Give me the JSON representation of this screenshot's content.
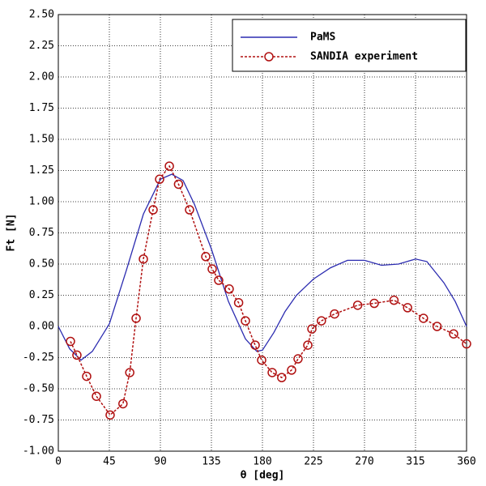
{
  "chart_data": {
    "type": "line",
    "xlabel": "θ [deg]",
    "ylabel": "Ft [N]",
    "xlim": [
      0,
      360
    ],
    "xticks": [
      0,
      45,
      90,
      135,
      180,
      225,
      270,
      315,
      360
    ],
    "ylim": [
      -1,
      2.5
    ],
    "yticks": [
      {
        "value": -1,
        "label": "-1.00"
      },
      {
        "value": -0.75,
        "label": "-0.75"
      },
      {
        "value": -0.5,
        "label": "-0.50"
      },
      {
        "value": -0.25,
        "label": "-0.25"
      },
      {
        "value": 0,
        "label": "0.00"
      },
      {
        "value": 0.25,
        "label": "0.25"
      },
      {
        "value": 0.5,
        "label": "0.50"
      },
      {
        "value": 0.75,
        "label": "0.75"
      },
      {
        "value": 1,
        "label": "1.00"
      },
      {
        "value": 1.25,
        "label": "1.25"
      },
      {
        "value": 1.5,
        "label": "1.50"
      },
      {
        "value": 1.75,
        "label": "1.75"
      },
      {
        "value": 2,
        "label": "2.00"
      },
      {
        "value": 2.25,
        "label": "2.25"
      },
      {
        "value": 2.5,
        "label": "2.50"
      }
    ],
    "grid": true,
    "legend": "upper right",
    "series": [
      {
        "name": "PaMS",
        "color": "#2b2bb0",
        "style": "solid",
        "x": [
          0,
          10,
          20,
          30,
          45,
          60,
          75,
          90,
          100,
          110,
          120,
          135,
          150,
          165,
          175,
          180,
          190,
          200,
          210,
          225,
          240,
          255,
          270,
          285,
          300,
          315,
          325,
          340,
          350,
          360
        ],
        "values": [
          0.0,
          -0.18,
          -0.27,
          -0.2,
          0.02,
          0.45,
          0.9,
          1.18,
          1.22,
          1.17,
          0.98,
          0.62,
          0.2,
          -0.1,
          -0.2,
          -0.19,
          -0.05,
          0.12,
          0.25,
          0.38,
          0.47,
          0.53,
          0.53,
          0.49,
          0.5,
          0.54,
          0.52,
          0.35,
          0.2,
          0.0
        ]
      },
      {
        "name": "SANDIA experiment",
        "color": "#b01010",
        "style": "dashed-circles",
        "x": [
          10.7,
          16.4,
          25,
          33.6,
          45.7,
          57,
          63,
          68.6,
          75,
          83.6,
          89.3,
          97.9,
          106,
          115.7,
          130,
          135.7,
          141.4,
          150.7,
          159,
          165,
          173.6,
          179.3,
          188.6,
          197,
          205.7,
          211.4,
          220,
          223.6,
          232,
          243.6,
          264,
          278.6,
          296,
          308,
          322,
          334,
          348.6,
          360
        ],
        "values": [
          -0.12,
          -0.23,
          -0.4,
          -0.56,
          -0.71,
          -0.62,
          -0.37,
          0.065,
          0.54,
          0.935,
          1.18,
          1.285,
          1.14,
          0.935,
          0.56,
          0.46,
          0.37,
          0.3,
          0.19,
          0.045,
          -0.15,
          -0.27,
          -0.37,
          -0.41,
          -0.35,
          -0.26,
          -0.15,
          -0.02,
          0.045,
          0.1,
          0.17,
          0.185,
          0.21,
          0.15,
          0.065,
          0.0,
          -0.06,
          -0.14
        ]
      }
    ]
  }
}
